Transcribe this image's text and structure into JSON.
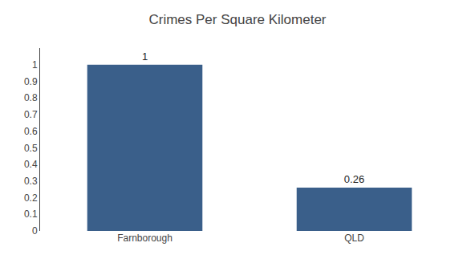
{
  "chart_data": {
    "type": "bar",
    "title": "Crimes Per Square Kilometer",
    "categories": [
      "Farnborough",
      "QLD"
    ],
    "values": [
      1.0,
      0.26
    ],
    "color": "#3a5f8a",
    "ylim": [
      0,
      1.1
    ],
    "yticks": [
      0,
      0.1,
      0.2,
      0.3,
      0.4,
      0.5,
      0.6,
      0.7,
      0.8,
      0.9,
      1
    ],
    "grid": false,
    "data_labels": true
  }
}
